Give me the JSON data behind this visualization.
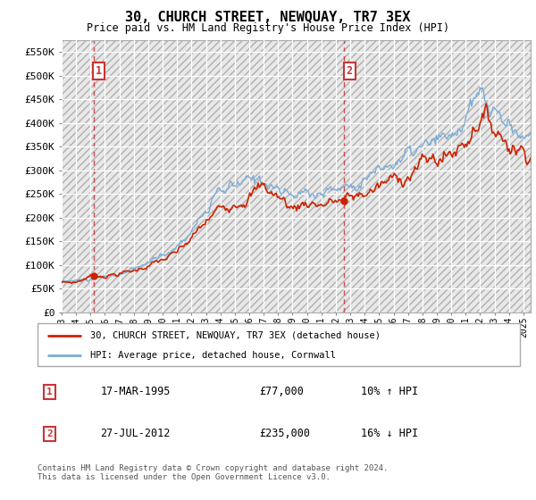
{
  "title": "30, CHURCH STREET, NEWQUAY, TR7 3EX",
  "subtitle": "Price paid vs. HM Land Registry's House Price Index (HPI)",
  "ylim": [
    0,
    575000
  ],
  "yticks": [
    0,
    50000,
    100000,
    150000,
    200000,
    250000,
    300000,
    350000,
    400000,
    450000,
    500000,
    550000
  ],
  "ytick_labels": [
    "£0",
    "£50K",
    "£100K",
    "£150K",
    "£200K",
    "£250K",
    "£300K",
    "£350K",
    "£400K",
    "£450K",
    "£500K",
    "£550K"
  ],
  "sale1": {
    "date_num": 1995.21,
    "price": 77000,
    "label": "1",
    "pct": "10% ↑ HPI",
    "date_str": "17-MAR-1995"
  },
  "sale2": {
    "date_num": 2012.57,
    "price": 235000,
    "label": "2",
    "pct": "16% ↓ HPI",
    "date_str": "27-JUL-2012"
  },
  "hpi_line_color": "#7aacd6",
  "price_line_color": "#cc2200",
  "sale_dot_color": "#cc2200",
  "vline_color": "#cc3333",
  "legend_label_red": "30, CHURCH STREET, NEWQUAY, TR7 3EX (detached house)",
  "legend_label_blue": "HPI: Average price, detached house, Cornwall",
  "footnote": "Contains HM Land Registry data © Crown copyright and database right 2024.\nThis data is licensed under the Open Government Licence v3.0.",
  "xmin": 1993,
  "xmax": 2025.5
}
